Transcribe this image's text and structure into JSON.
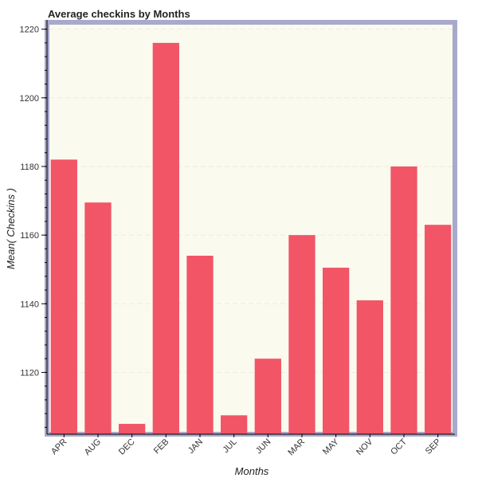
{
  "chart_data": {
    "type": "bar",
    "title": "Average checkins by Months",
    "xlabel": "Months",
    "ylabel": "Mean( Checkins )",
    "categories": [
      "APR",
      "AUG",
      "DEC",
      "FEB",
      "JAN",
      "JUL",
      "JUN",
      "MAR",
      "MAY",
      "NOV",
      "OCT",
      "SEP"
    ],
    "values": [
      1182,
      1169.5,
      1105,
      1216,
      1154,
      1107.5,
      1124,
      1160,
      1150.5,
      1141,
      1180,
      1163
    ],
    "ylim": [
      1102,
      1222
    ],
    "yticks": [
      1120,
      1140,
      1160,
      1180,
      1200,
      1220
    ],
    "grid": true,
    "legend": "none",
    "colors": {
      "bar": "#f25566",
      "plot_background": "#fafaee",
      "border": "#a9a9cc",
      "grid": "#ecece0"
    }
  }
}
